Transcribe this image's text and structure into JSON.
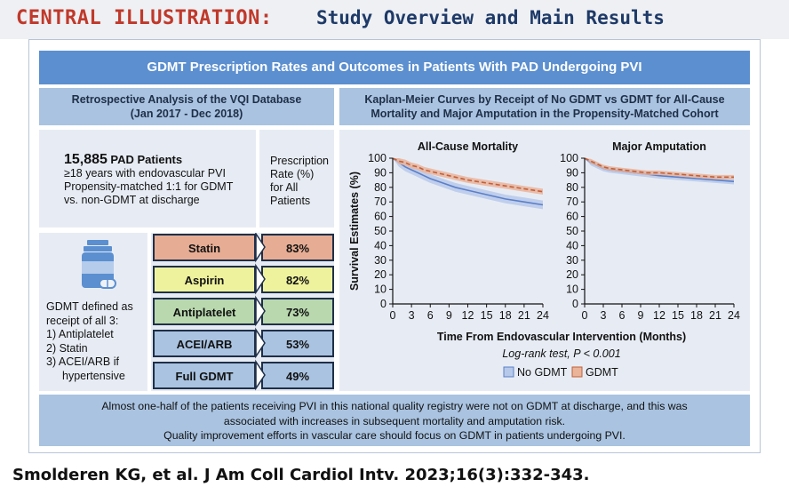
{
  "title": {
    "lead": "CENTRAL ILLUSTRATION:",
    "rest": "Study Overview and Main Results"
  },
  "banner": "GDMT Prescription Rates and Outcomes in Patients With PAD Undergoing PVI",
  "left_header": {
    "line1": "Retrospective Analysis of the VQI Database",
    "line2": "(Jan 2017 - Dec 2018)"
  },
  "right_header": {
    "line1": "Kaplan-Meier Curves by Receipt of No GDMT vs GDMT for All-Cause",
    "line2": "Mortality and Major Amputation in the Propensity-Matched Cohort"
  },
  "patients": {
    "count": "15,885",
    "count_label": "PAD Patients",
    "lines": [
      "≥18 years with endovascular PVI",
      "Propensity-matched 1:1 for GDMT",
      "vs. non-GDMT at discharge"
    ]
  },
  "rate_header": [
    "Prescription",
    "Rate (%)",
    "for All",
    "Patients"
  ],
  "gdmt_def": {
    "lines": [
      "GDMT defined as",
      "receipt of all 3:",
      "1) Antiplatelet",
      "2) Statin",
      "3) ACEI/ARB if",
      "hypertensive"
    ]
  },
  "icon": "pill-bottle-icon",
  "rates": [
    {
      "label": "Statin",
      "value": "83%",
      "color": "#e6ad94"
    },
    {
      "label": "Aspirin",
      "value": "82%",
      "color": "#eef29c"
    },
    {
      "label": "Antiplatelet",
      "value": "73%",
      "color": "#b9d8ae"
    },
    {
      "label": "ACEI/ARB",
      "value": "53%",
      "color": "#a9c3e0"
    },
    {
      "label": "Full GDMT",
      "value": "49%",
      "color": "#a9c3e0"
    }
  ],
  "footer": [
    "Almost one-half of the patients receiving PVI in this national quality registry were not on GDMT at discharge, and this was",
    "associated with increases in subsequent mortality and amputation risk.",
    "Quality improvement efforts in vascular care should focus on GDMT in patients undergoing PVI."
  ],
  "citation": "Smolderen KG, et al. J Am Coll Cardiol Intv. 2023;16(3):332-343.",
  "colors": {
    "no_gdmt_line": "#5b7fc7",
    "no_gdmt_band": "#b7c9ea",
    "gdmt_line": "#c0603a",
    "gdmt_band": "#eab49b",
    "dark": "#1f2f48"
  },
  "chart_data": [
    {
      "type": "line",
      "title": "All-Cause Mortality",
      "xlabel": "Time From Endovascular Intervention (Months)",
      "ylabel": "Survival Estimates (%)",
      "xlim": [
        0,
        24
      ],
      "ylim": [
        0,
        100
      ],
      "xticks": [
        0,
        3,
        6,
        9,
        12,
        15,
        18,
        21,
        24
      ],
      "yticks": [
        0,
        10,
        20,
        30,
        40,
        50,
        60,
        70,
        80,
        90,
        100
      ],
      "x": [
        0,
        1,
        2,
        3,
        4,
        5,
        6,
        8,
        10,
        12,
        15,
        18,
        21,
        24
      ],
      "series": [
        {
          "name": "No GDMT",
          "values": [
            100,
            97,
            94,
            92,
            90,
            88,
            86,
            83,
            80,
            78,
            75,
            72,
            70,
            68
          ],
          "ci_width": 3
        },
        {
          "name": "GDMT",
          "values": [
            100,
            98,
            97,
            95,
            94,
            92,
            91,
            89,
            87,
            85,
            83,
            81,
            79,
            77
          ],
          "ci_width": 2
        }
      ]
    },
    {
      "type": "line",
      "title": "Major Amputation",
      "xlabel": "Time From Endovascular Intervention (Months)",
      "ylabel": "",
      "xlim": [
        0,
        24
      ],
      "ylim": [
        0,
        100
      ],
      "xticks": [
        0,
        3,
        6,
        9,
        12,
        15,
        18,
        21,
        24
      ],
      "yticks": [
        0,
        10,
        20,
        30,
        40,
        50,
        60,
        70,
        80,
        90,
        100
      ],
      "x": [
        0,
        1,
        2,
        3,
        4,
        6,
        8,
        10,
        12,
        15,
        18,
        21,
        24
      ],
      "series": [
        {
          "name": "No GDMT",
          "values": [
            100,
            97,
            95,
            93,
            92,
            91,
            90,
            89,
            88,
            87,
            86,
            85,
            84
          ],
          "ci_width": 2
        },
        {
          "name": "GDMT",
          "values": [
            100,
            98,
            96,
            94,
            93,
            92,
            91,
            90,
            90,
            89,
            88,
            87,
            87
          ],
          "ci_width": 1.5
        }
      ]
    }
  ],
  "test_note": "Log-rank test, P < 0.001",
  "legend": [
    {
      "label": "No GDMT"
    },
    {
      "label": "GDMT"
    }
  ]
}
